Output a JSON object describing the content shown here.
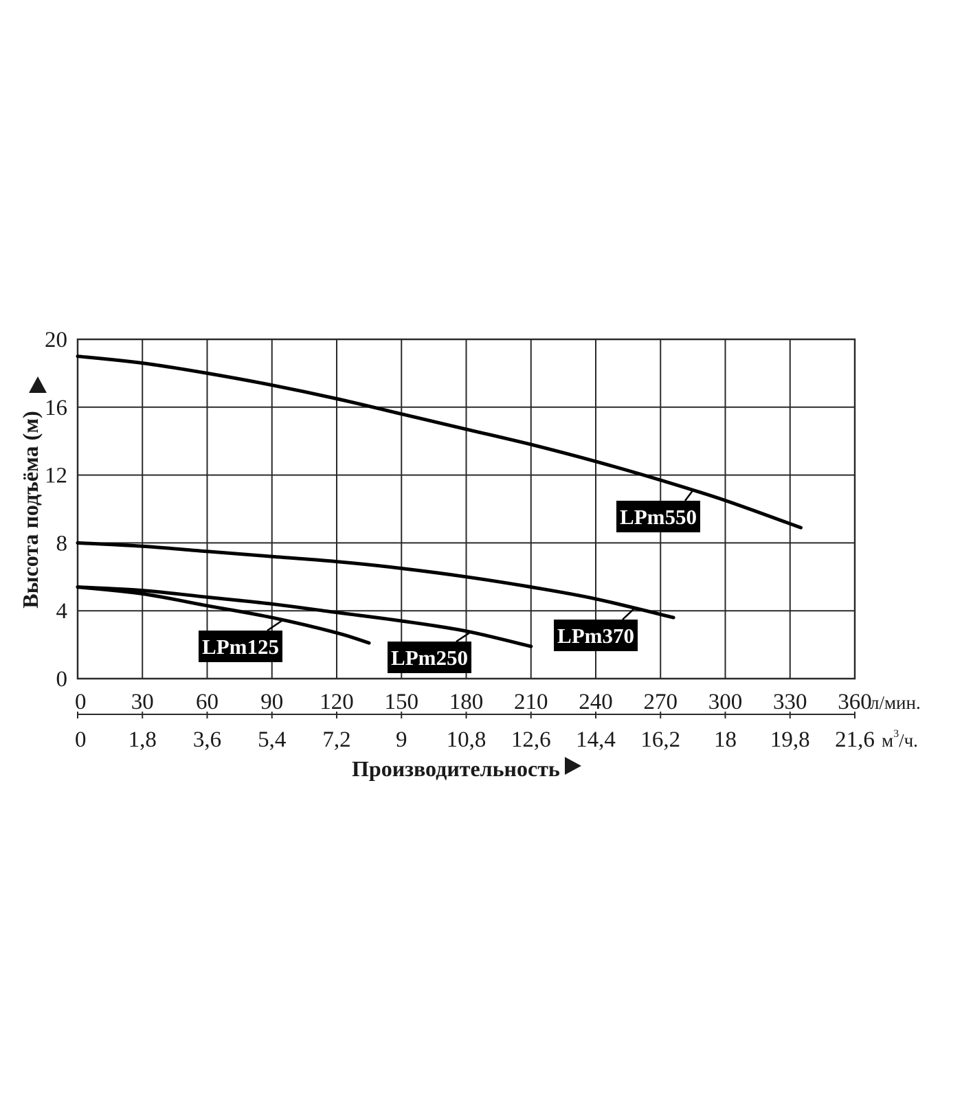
{
  "chart_data": {
    "type": "line",
    "ylabel": "Высота подъёма (м)",
    "xlabel": "Производительность",
    "xlim": [
      0,
      360
    ],
    "ylim": [
      0,
      20
    ],
    "grid": true,
    "y_ticks": [
      "0",
      "4",
      "8",
      "12",
      "16",
      "20"
    ],
    "y_tick_values": [
      0,
      4,
      8,
      12,
      16,
      20
    ],
    "x_ticks_primary": [
      "0",
      "30",
      "60",
      "90",
      "120",
      "150",
      "180",
      "210",
      "240",
      "270",
      "300",
      "330",
      "360"
    ],
    "x_ticks_primary_values": [
      0,
      30,
      60,
      90,
      120,
      150,
      180,
      210,
      240,
      270,
      300,
      330,
      360
    ],
    "x_unit_primary": "л/мин.",
    "x_ticks_secondary": [
      "0",
      "1,8",
      "3,6",
      "5,4",
      "7,2",
      "9",
      "10,8",
      "12,6",
      "14,4",
      "16,2",
      "18",
      "19,8",
      "21,6"
    ],
    "x_unit_secondary_base": "м",
    "x_unit_secondary_sup": "3",
    "x_unit_secondary_tail": "/ч.",
    "series": [
      {
        "name": "LPm550",
        "x": [
          0,
          30,
          60,
          90,
          120,
          150,
          180,
          210,
          240,
          270,
          300,
          335
        ],
        "y": [
          19.0,
          18.6,
          18.0,
          17.3,
          16.5,
          15.6,
          14.7,
          13.8,
          12.8,
          11.7,
          10.5,
          8.9
        ]
      },
      {
        "name": "LPm370",
        "x": [
          0,
          30,
          60,
          90,
          120,
          150,
          180,
          210,
          240,
          276
        ],
        "y": [
          8.0,
          7.8,
          7.5,
          7.2,
          6.9,
          6.5,
          6.0,
          5.4,
          4.7,
          3.6
        ]
      },
      {
        "name": "LPm250",
        "x": [
          0,
          30,
          60,
          90,
          120,
          150,
          180,
          210
        ],
        "y": [
          5.4,
          5.2,
          4.8,
          4.4,
          3.9,
          3.4,
          2.8,
          1.9
        ]
      },
      {
        "name": "LPm125",
        "x": [
          0,
          30,
          60,
          90,
          120,
          135
        ],
        "y": [
          5.4,
          5.0,
          4.3,
          3.6,
          2.7,
          2.1
        ]
      }
    ]
  }
}
